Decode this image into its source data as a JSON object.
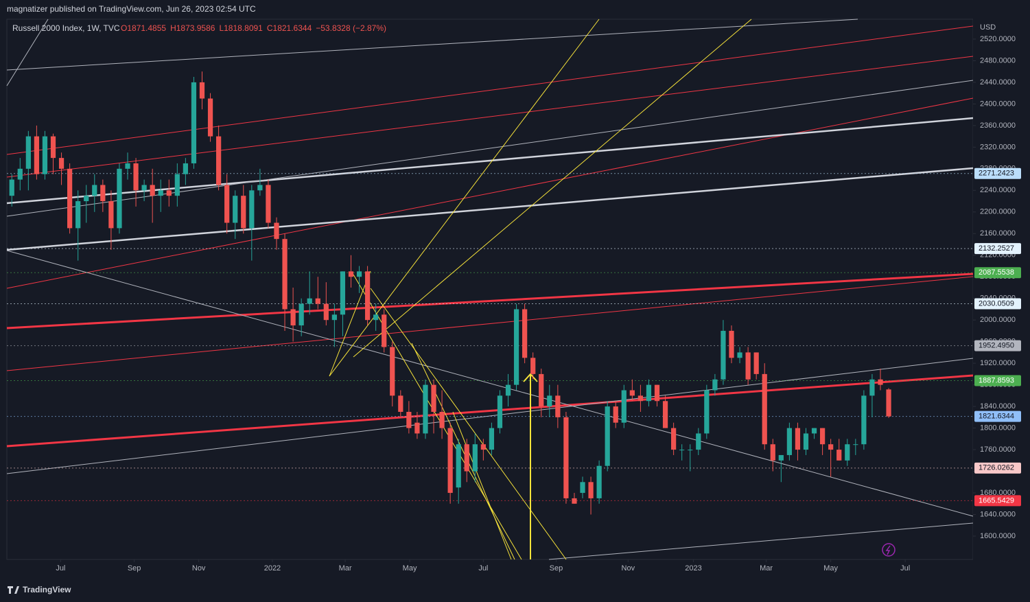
{
  "header": {
    "publisher": "magnatizer published on TradingView.com, Jun 26, 2023 02:54 UTC",
    "footer": "TradingView"
  },
  "chart_data": {
    "type": "candlestick",
    "title": "Russell 2000 Index, 1W, TVC",
    "ohlc_text": {
      "open": "O1871.4855",
      "high": "H1873.9586",
      "low": "L1818.8091",
      "close": "C1821.6344",
      "change": "−53.8328 (−2.87%)"
    },
    "currency": "USD",
    "up_color": "#26a69a",
    "down_color": "#ef5350",
    "open": [
      2230,
      2260,
      2280,
      2340,
      2270,
      2340,
      2300,
      2280,
      2170,
      2220,
      2230,
      2250,
      2220,
      2170,
      2280,
      2290,
      2240,
      2250,
      2230,
      2240,
      2230,
      2270,
      2290,
      2440,
      2410,
      2340,
      2250,
      2180,
      2230,
      2170,
      2240,
      2250,
      2180,
      2150,
      2020,
      1990,
      2030,
      2040,
      2030,
      2000,
      2010,
      2090,
      2080,
      2090,
      2000,
      2010,
      1950,
      1860,
      1830,
      1810,
      1790,
      1880,
      1830,
      1800,
      1690,
      1770,
      1720,
      1770,
      1760,
      1800,
      1860,
      1880,
      2020,
      1930,
      1900,
      1840,
      1860,
      1820,
      1670,
      1680,
      1700,
      1670,
      1730,
      1840,
      1810,
      1870,
      1860,
      1850,
      1880,
      1850,
      1800,
      1760,
      1760,
      1760,
      1790,
      1870,
      1890,
      1980,
      1930,
      1940,
      1940,
      1900,
      1770,
      1740,
      1750,
      1800,
      1760,
      1790,
      1800,
      1770,
      1760,
      1740,
      1770,
      1770,
      1860,
      1890,
      1871.4855
    ],
    "high": [
      2270,
      2300,
      2350,
      2360,
      2350,
      2345,
      2310,
      2290,
      2240,
      2250,
      2270,
      2260,
      2240,
      2290,
      2310,
      2300,
      2260,
      2280,
      2260,
      2260,
      2290,
      2300,
      2450,
      2460,
      2420,
      2360,
      2270,
      2240,
      2250,
      2250,
      2280,
      2260,
      2190,
      2160,
      2060,
      2040,
      2090,
      2080,
      2070,
      2030,
      2090,
      2120,
      2100,
      2100,
      2030,
      2020,
      1960,
      1870,
      1850,
      1830,
      1890,
      1890,
      1870,
      1810,
      1780,
      1780,
      1790,
      1780,
      1810,
      1870,
      1900,
      2030,
      2030,
      1940,
      1910,
      1880,
      1880,
      1830,
      1680,
      1710,
      1710,
      1740,
      1850,
      1850,
      1880,
      1890,
      1880,
      1890,
      1880,
      1860,
      1810,
      1770,
      1770,
      1800,
      1880,
      1900,
      2000,
      1990,
      1950,
      1950,
      1940,
      1920,
      1780,
      1750,
      1810,
      1810,
      1800,
      1800,
      1800,
      1780,
      1780,
      1780,
      1780,
      1870,
      1900,
      1910,
      1873.9586
    ],
    "low": [
      2210,
      2240,
      2240,
      2260,
      2260,
      2270,
      2250,
      2160,
      2110,
      2180,
      2200,
      2200,
      2130,
      2160,
      2260,
      2210,
      2220,
      2180,
      2200,
      2210,
      2210,
      2250,
      2280,
      2390,
      2330,
      2240,
      2160,
      2150,
      2160,
      2110,
      2230,
      2170,
      2130,
      1980,
      1960,
      1970,
      2010,
      2020,
      1990,
      1950,
      1970,
      2060,
      2050,
      1990,
      1980,
      1940,
      1840,
      1820,
      1790,
      1780,
      1780,
      1790,
      1780,
      1660,
      1660,
      1700,
      1700,
      1740,
      1750,
      1790,
      1840,
      1870,
      1920,
      1890,
      1820,
      1820,
      1800,
      1660,
      1660,
      1670,
      1640,
      1660,
      1720,
      1800,
      1800,
      1850,
      1830,
      1840,
      1840,
      1800,
      1750,
      1740,
      1720,
      1750,
      1780,
      1860,
      1880,
      1920,
      1920,
      1880,
      1890,
      1760,
      1720,
      1700,
      1740,
      1740,
      1750,
      1780,
      1750,
      1710,
      1740,
      1730,
      1750,
      1760,
      1820,
      1870,
      1818.8091
    ],
    "close": [
      2260,
      2280,
      2340,
      2270,
      2340,
      2300,
      2280,
      2170,
      2220,
      2230,
      2250,
      2220,
      2170,
      2280,
      2290,
      2240,
      2250,
      2230,
      2240,
      2230,
      2270,
      2290,
      2440,
      2410,
      2340,
      2250,
      2180,
      2230,
      2170,
      2240,
      2250,
      2180,
      2150,
      2020,
      1990,
      2030,
      2040,
      2030,
      2000,
      2010,
      2090,
      2080,
      2090,
      2000,
      2010,
      1950,
      1860,
      1830,
      1800,
      1790,
      1880,
      1830,
      1800,
      1680,
      1770,
      1720,
      1770,
      1760,
      1800,
      1860,
      1880,
      2020,
      1930,
      1900,
      1840,
      1860,
      1820,
      1670,
      1660,
      1700,
      1670,
      1730,
      1840,
      1810,
      1870,
      1860,
      1850,
      1880,
      1850,
      1800,
      1760,
      1760,
      1760,
      1790,
      1870,
      1890,
      1980,
      1930,
      1940,
      1890,
      1900,
      1770,
      1740,
      1750,
      1800,
      1760,
      1790,
      1800,
      1770,
      1760,
      1740,
      1770,
      1770,
      1860,
      1890,
      1880,
      1821.6344
    ],
    "xlim": [
      -0.6,
      116.2
    ],
    "xticks": [
      {
        "value": 5.9,
        "label": "Jul"
      },
      {
        "value": 14.8,
        "label": "Sep"
      },
      {
        "value": 22.6,
        "label": "Nov"
      },
      {
        "value": 31.5,
        "label": "2022"
      },
      {
        "value": 40.3,
        "label": "Mar"
      },
      {
        "value": 48.1,
        "label": "May"
      },
      {
        "value": 57,
        "label": "Jul"
      },
      {
        "value": 65.8,
        "label": "Sep"
      },
      {
        "value": 74.5,
        "label": "Nov"
      },
      {
        "value": 82.4,
        "label": "2023"
      },
      {
        "value": 91.2,
        "label": "Mar"
      },
      {
        "value": 99,
        "label": "May"
      },
      {
        "value": 108,
        "label": "Jul"
      }
    ],
    "ylim": [
      1556.8,
      2556.8
    ],
    "yticks": [
      {
        "value": 1600,
        "label": "1600.0000"
      },
      {
        "value": 1640,
        "label": "1640.0000"
      },
      {
        "value": 1680,
        "label": "1680.0000"
      },
      {
        "value": 1720,
        "label": "1720.0000"
      },
      {
        "value": 1760,
        "label": "1760.0000"
      },
      {
        "value": 1800,
        "label": "1800.0000"
      },
      {
        "value": 1840,
        "label": "1840.0000"
      },
      {
        "value": 1880,
        "label": "1880.0000"
      },
      {
        "value": 1920,
        "label": "1920.0000"
      },
      {
        "value": 1960,
        "label": "1960.0000"
      },
      {
        "value": 2000,
        "label": "2000.0000"
      },
      {
        "value": 2040,
        "label": "2040.0000"
      },
      {
        "value": 2080,
        "label": "2080.0000"
      },
      {
        "value": 2120,
        "label": "2120.0000"
      },
      {
        "value": 2160,
        "label": "2160.0000"
      },
      {
        "value": 2200,
        "label": "2200.0000"
      },
      {
        "value": 2240,
        "label": "2240.0000"
      },
      {
        "value": 2280,
        "label": "2280.0000"
      },
      {
        "value": 2320,
        "label": "2320.0000"
      },
      {
        "value": 2360,
        "label": "2360.0000"
      },
      {
        "value": 2400,
        "label": "2400.0000"
      },
      {
        "value": 2440,
        "label": "2440.0000"
      },
      {
        "value": 2480,
        "label": "2480.0000"
      },
      {
        "value": 2520,
        "label": "2520.0000"
      }
    ],
    "price_lines": [
      {
        "value": 2271.2423,
        "label": "2271.2423",
        "color": "#bbdefb",
        "text_color": "#131722"
      },
      {
        "value": 2132.2527,
        "label": "2132.2527",
        "color": "#e3f2fd",
        "text_color": "#131722"
      },
      {
        "value": 2087.5538,
        "label": "2087.5538",
        "color": "#4caf50",
        "text_color": "#ffffff"
      },
      {
        "value": 2030.0509,
        "label": "2030.0509",
        "color": "#e3f2fd",
        "text_color": "#131722"
      },
      {
        "value": 1952.495,
        "label": "1952.4950",
        "color": "#b2b5be",
        "text_color": "#131722"
      },
      {
        "value": 1887.8593,
        "label": "1887.8593",
        "color": "#4caf50",
        "text_color": "#ffffff"
      },
      {
        "value": 1821.6344,
        "label": "1821.6344",
        "color": "#90bff9",
        "text_color": "#131722"
      },
      {
        "value": 1726.0262,
        "label": "1726.0262",
        "color": "#f8c8c8",
        "text_color": "#131722"
      },
      {
        "value": 1665.5429,
        "label": "1665.5429",
        "color": "#f23645",
        "text_color": "#ffffff"
      }
    ]
  }
}
